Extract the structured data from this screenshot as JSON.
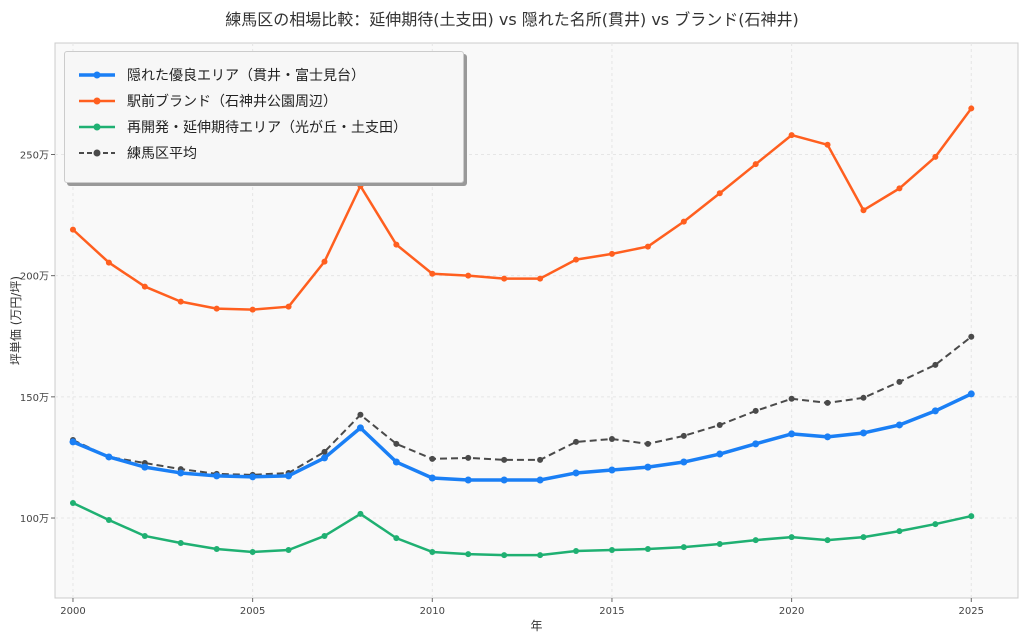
{
  "chart_data": {
    "type": "line",
    "title": "練馬区の相場比較：延伸期待(土支田) vs 隠れた名所(貫井) vs ブランド(石神井)",
    "xlabel": "年",
    "ylabel": "坪単価 (万円/坪)",
    "xlim": [
      1999.5,
      2026.3
    ],
    "ylim": [
      67,
      296
    ],
    "xticks": [
      2000,
      2005,
      2010,
      2015,
      2020,
      2025
    ],
    "yticks": [
      100,
      150,
      200,
      250
    ],
    "ytick_labels": [
      "100万",
      "150万",
      "200万",
      "250万"
    ],
    "grid": true,
    "legend_position": "top-left",
    "x": [
      2000,
      2001,
      2002,
      2003,
      2004,
      2005,
      2006,
      2007,
      2008,
      2009,
      2010,
      2011,
      2012,
      2013,
      2014,
      2015,
      2016,
      2017,
      2018,
      2019,
      2020,
      2021,
      2022,
      2023,
      2024,
      2025
    ],
    "series": [
      {
        "name": "隠れた優良エリア（貫井・富士見台）",
        "color": "#1a7ff5",
        "style": "solid",
        "width": 3.5,
        "values": [
          131.4,
          125.2,
          121,
          118.6,
          117.4,
          117,
          117.4,
          124.8,
          137.2,
          123.1,
          116.5,
          115.7,
          115.7,
          115.7,
          118.6,
          119.8,
          121,
          123.1,
          126.4,
          130.6,
          134.7,
          133.5,
          135.1,
          138.4,
          144.2,
          151.2
        ]
      },
      {
        "name": "駅前ブランド（石神井公園周辺）",
        "color": "#ff5f1f",
        "style": "solid",
        "width": 2.5,
        "values": [
          219,
          205.4,
          195.5,
          189.3,
          186.4,
          186,
          187.2,
          205.8,
          237,
          212.8,
          200.8,
          200,
          198.8,
          198.8,
          206.6,
          209,
          212,
          222.3,
          234,
          246,
          258,
          254,
          227,
          236,
          249,
          269
        ]
      },
      {
        "name": "再開発・延伸期待エリア（光が丘・土支田）",
        "color": "#1fb072",
        "style": "solid",
        "width": 2.5,
        "values": [
          106.2,
          99.2,
          92.6,
          89.7,
          87.2,
          86,
          86.8,
          92.6,
          101.7,
          91.7,
          86,
          85.1,
          84.7,
          84.7,
          86.4,
          86.8,
          87.2,
          88,
          89.3,
          90.9,
          92.1,
          90.9,
          92.1,
          94.6,
          97.5,
          100.8
        ]
      },
      {
        "name": "練馬区平均",
        "color": "#4a4a4a",
        "style": "dashed",
        "width": 2,
        "values": [
          132.2,
          125.2,
          122.7,
          120.2,
          118.2,
          117.8,
          118.6,
          127.3,
          142.6,
          130.6,
          124.4,
          124.8,
          124,
          124,
          131.4,
          132.6,
          130.6,
          133.9,
          138.4,
          144.2,
          149.2,
          147.5,
          149.6,
          156.2,
          163.2,
          174.8
        ]
      }
    ]
  }
}
